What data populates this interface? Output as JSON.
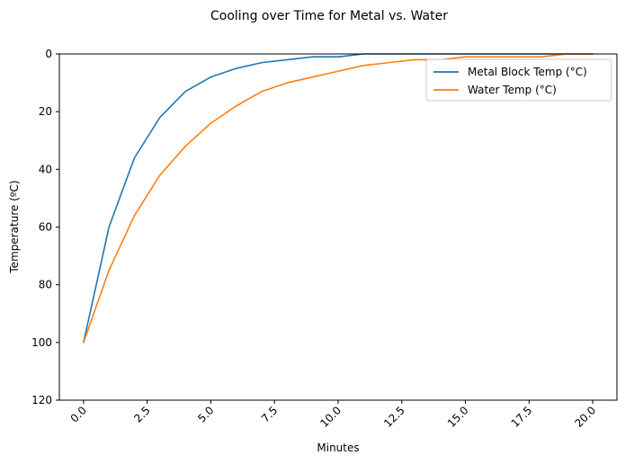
{
  "chart_data": {
    "type": "line",
    "title": "Cooling over Time for Metal vs. Water",
    "xlabel": "Minutes",
    "ylabel": "Temperature (ºC)",
    "xlim": [
      -0.95,
      20.95
    ],
    "ylim": [
      120,
      0
    ],
    "y_inverted": true,
    "grid": false,
    "legend_position": "top-right",
    "xticks": [
      "0.0",
      "2.5",
      "5.0",
      "7.5",
      "10.0",
      "12.5",
      "15.0",
      "17.5",
      "20.0"
    ],
    "xtick_values": [
      0,
      2.5,
      5,
      7.5,
      10,
      12.5,
      15,
      17.5,
      20
    ],
    "yticks": [
      "0",
      "20",
      "40",
      "60",
      "80",
      "100",
      "120"
    ],
    "ytick_values": [
      0,
      20,
      40,
      60,
      80,
      100,
      120
    ],
    "x": [
      0,
      1,
      2,
      3,
      4,
      5,
      6,
      7,
      8,
      9,
      10,
      11,
      12,
      13,
      14,
      15,
      16,
      17,
      18,
      19,
      20
    ],
    "series": [
      {
        "name": "Metal Block Temp (°C)",
        "color": "#1f77b4",
        "values": [
          100,
          60,
          36,
          22,
          13,
          8,
          5,
          3,
          2,
          1,
          1,
          0,
          0,
          0,
          0,
          0,
          0,
          0,
          0,
          0,
          0
        ]
      },
      {
        "name": "Water Temp (°C)",
        "color": "#ff7f0e",
        "values": [
          100,
          75,
          56,
          42,
          32,
          24,
          18,
          13,
          10,
          8,
          6,
          4,
          3,
          2,
          2,
          1,
          1,
          1,
          1,
          0,
          0
        ]
      }
    ]
  }
}
